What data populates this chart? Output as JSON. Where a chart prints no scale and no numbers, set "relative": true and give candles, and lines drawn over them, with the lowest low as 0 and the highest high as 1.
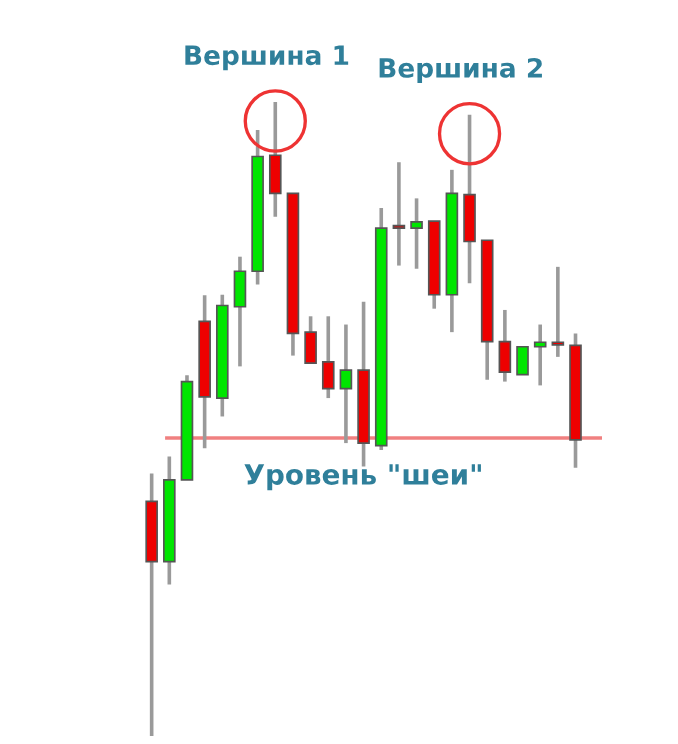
{
  "chart_data": {
    "type": "candlestick",
    "relative": true,
    "categories": [
      null,
      null,
      null,
      null,
      null,
      null,
      null,
      null,
      null,
      null,
      null,
      null,
      null,
      null,
      null,
      null,
      null,
      null,
      null,
      null,
      null,
      null,
      null,
      null,
      null
    ],
    "ohlc": [
      [
        0.37,
        0.414,
        0,
        0.275
      ],
      [
        0.275,
        0.441,
        0.239,
        0.404
      ],
      [
        0.404,
        0.569,
        0.404,
        0.559
      ],
      [
        0.654,
        0.695,
        0.454,
        0.535
      ],
      [
        0.533,
        0.696,
        0.504,
        0.679
      ],
      [
        0.677,
        0.756,
        0.583,
        0.733
      ],
      [
        0.733,
        0.956,
        0.712,
        0.914
      ],
      [
        0.916,
        1,
        0.819,
        0.856
      ],
      [
        0.856,
        0.856,
        0.6,
        0.635
      ],
      [
        0.637,
        0.662,
        0.588,
        0.588
      ],
      [
        0.59,
        0.662,
        0.533,
        0.548
      ],
      [
        0.548,
        0.649,
        0.462,
        0.577
      ],
      [
        0.577,
        0.685,
        0.425,
        0.462
      ],
      [
        0.458,
        0.833,
        0.451,
        0.801
      ],
      [
        0.805,
        0.905,
        0.742,
        0.801
      ],
      [
        0.801,
        0.848,
        0.737,
        0.811
      ],
      [
        0.812,
        0.812,
        0.674,
        0.696
      ],
      [
        0.696,
        0.893,
        0.637,
        0.856
      ],
      [
        0.854,
        0.98,
        0.714,
        0.78
      ],
      [
        0.782,
        0.782,
        0.562,
        0.622
      ],
      [
        0.622,
        0.672,
        0.559,
        0.574
      ],
      [
        0.57,
        0.614,
        0.57,
        0.614
      ],
      [
        0.614,
        0.649,
        0.553,
        0.621
      ],
      [
        0.621,
        0.74,
        0.598,
        0.617
      ],
      [
        0.616,
        0.635,
        0.423,
        0.467
      ]
    ],
    "colors": [
      "#ee0000",
      "#00e600",
      "#00e600",
      "#ee0000",
      "#00e600",
      "#00e600",
      "#00e600",
      "#ee0000",
      "#ee0000",
      "#ee0000",
      "#ee0000",
      "#00e600",
      "#ee0000",
      "#00e600",
      "#ee0000",
      "#00e600",
      "#ee0000",
      "#00e600",
      "#ee0000",
      "#ee0000",
      "#ee0000",
      "#00e600",
      "#00e600",
      "#ee0000",
      "#ee0000"
    ],
    "annotations": [
      {
        "text": "Вершина 1",
        "y": 1
      },
      {
        "text": "Вершина 2",
        "y": 0.98
      }
    ],
    "ref_lines": [
      {
        "axis": "y",
        "value": 0.47,
        "label": "Уровень \"шеи\"",
        "color": "#f08080",
        "line_style": "solid"
      }
    ]
  }
}
